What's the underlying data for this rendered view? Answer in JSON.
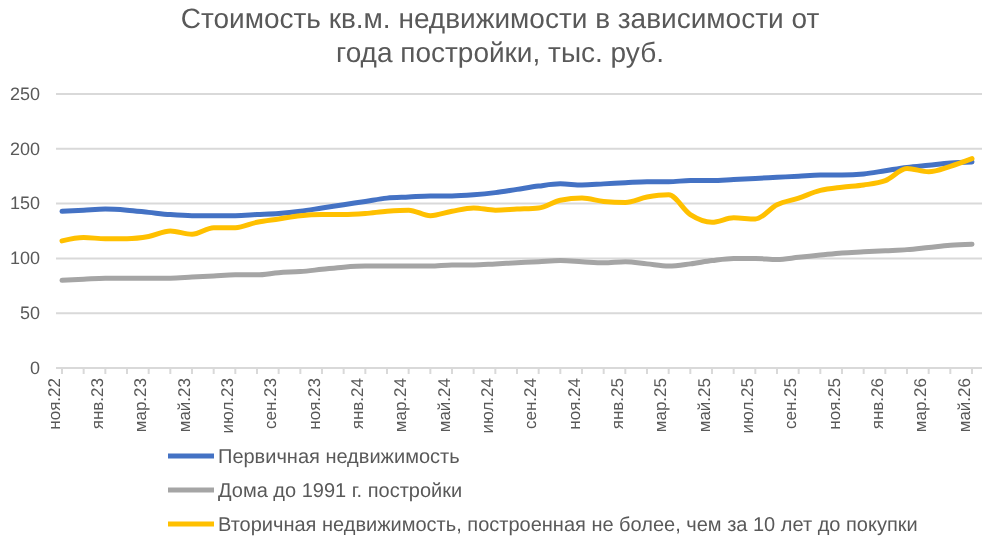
{
  "chart_data": {
    "type": "line",
    "title": "Стоимость кв.м. недвижимости в зависимости от года постройки, тыс. руб.",
    "categories": [
      "ноя.22",
      null,
      "янв.23",
      null,
      "мар.23",
      null,
      "май.23",
      null,
      "июл.23",
      null,
      "сен.23",
      null,
      "ноя.23",
      null,
      "янв.24",
      null,
      "мар.24",
      null,
      "май.24",
      null,
      "июл.24",
      null,
      "сен.24",
      null,
      "ноя.24",
      null,
      "янв.25",
      null,
      "мар.25",
      null,
      "май.25",
      null,
      "июл.25",
      null,
      "сен.25",
      null,
      "ноя.25",
      null,
      "янв.26",
      null,
      "мар.26",
      null,
      "май.26"
    ],
    "series": [
      {
        "name": "Первичная недвижимость",
        "color": "#4472c4",
        "values": [
          143,
          144,
          145,
          144,
          142,
          140,
          139,
          139,
          139,
          140,
          141,
          143,
          146,
          149,
          152,
          155,
          156,
          157,
          157,
          158,
          160,
          163,
          166,
          168,
          167,
          168,
          169,
          170,
          170,
          171,
          171,
          172,
          173,
          174,
          175,
          176,
          176,
          177,
          180,
          183,
          185,
          187,
          188
        ]
      },
      {
        "name": "Дома до 1991 г. постройки",
        "color": "#a5a5a5",
        "values": [
          80,
          81,
          82,
          82,
          82,
          82,
          83,
          84,
          85,
          85,
          87,
          88,
          90,
          92,
          93,
          93,
          93,
          93,
          94,
          94,
          95,
          96,
          97,
          98,
          97,
          96,
          97,
          95,
          93,
          95,
          98,
          100,
          100,
          99,
          101,
          103,
          105,
          106,
          107,
          108,
          110,
          112,
          113
        ]
      },
      {
        "name": "Вторичная недвижимость, построенная не более, чем за 10 лет до покупки",
        "color": "#ffc000",
        "values": [
          116,
          119,
          118,
          118,
          120,
          125,
          122,
          128,
          128,
          133,
          136,
          139,
          140,
          140,
          141,
          143,
          144,
          139,
          143,
          146,
          144,
          145,
          146,
          153,
          155,
          152,
          151,
          156,
          158,
          140,
          133,
          137,
          136,
          149,
          155,
          162,
          165,
          167,
          171,
          182,
          179,
          184,
          191
        ]
      }
    ],
    "ylim": [
      0,
      250
    ],
    "yticks": [
      0,
      50,
      100,
      150,
      200,
      250
    ],
    "grid": "y",
    "legend": "bottom"
  }
}
